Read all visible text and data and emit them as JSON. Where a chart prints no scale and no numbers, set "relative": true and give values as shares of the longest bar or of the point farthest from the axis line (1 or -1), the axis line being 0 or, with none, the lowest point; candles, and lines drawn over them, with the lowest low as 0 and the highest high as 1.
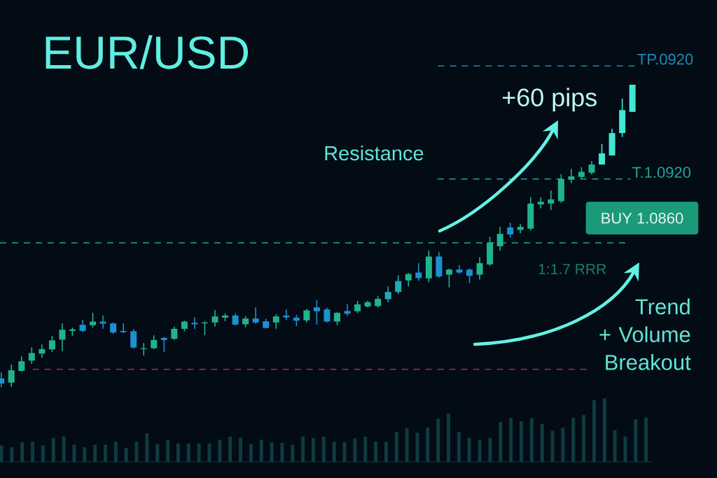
{
  "chart_data": [
    {
      "type": "candlestick",
      "title": "EUR/USD",
      "relative": true,
      "categories": [
        null,
        null,
        null,
        null,
        null,
        null,
        null,
        null,
        null,
        null,
        null,
        null,
        null,
        null,
        null,
        null,
        null,
        null,
        null,
        null,
        null,
        null,
        null,
        null,
        null,
        null,
        null,
        null,
        null,
        null,
        null,
        null,
        null,
        null,
        null,
        null,
        null,
        null,
        null,
        null,
        null,
        null,
        null,
        null,
        null,
        null,
        null,
        null,
        null,
        null,
        null,
        null,
        null,
        null,
        null,
        null,
        null,
        null,
        null,
        null,
        null,
        null,
        null
      ],
      "ohlc": [
        [
          0.029,
          0.049,
          0,
          0.012
        ],
        [
          0.015,
          0.075,
          0.001,
          0.056
        ],
        [
          0.054,
          0.102,
          0.052,
          0.086
        ],
        [
          0.088,
          0.132,
          0.077,
          0.113
        ],
        [
          0.111,
          0.141,
          0.097,
          0.126
        ],
        [
          0.125,
          0.17,
          0.117,
          0.155
        ],
        [
          0.157,
          0.211,
          0.119,
          0.19
        ],
        [
          0.186,
          0.197,
          0.17,
          0.191
        ],
        [
          0.206,
          0.223,
          0.182,
          0.186
        ],
        [
          0.205,
          0.246,
          0.197,
          0.217
        ],
        [
          0.217,
          0.237,
          0.193,
          0.21
        ],
        [
          0.211,
          0.214,
          0.176,
          0.181
        ],
        [
          0.186,
          0.211,
          0.179,
          0.182
        ],
        [
          0.185,
          0.192,
          0.128,
          0.131
        ],
        [
          0.126,
          0.146,
          0.105,
          0.129
        ],
        [
          0.129,
          0.171,
          0.126,
          0.156
        ],
        [
          0.163,
          0.166,
          0.116,
          0.156
        ],
        [
          0.16,
          0.2,
          0.156,
          0.193
        ],
        [
          0.193,
          0.22,
          0.185,
          0.217
        ],
        [
          0.213,
          0.231,
          0.193,
          0.208
        ],
        [
          0.211,
          0.218,
          0.172,
          0.214
        ],
        [
          0.214,
          0.255,
          0.2,
          0.234
        ],
        [
          0.23,
          0.244,
          0.218,
          0.237
        ],
        [
          0.237,
          0.244,
          0.205,
          0.207
        ],
        [
          0.208,
          0.235,
          0.198,
          0.227
        ],
        [
          0.227,
          0.264,
          0.21,
          0.214
        ],
        [
          0.218,
          0.226,
          0.194,
          0.196
        ],
        [
          0.214,
          0.241,
          0.193,
          0.234
        ],
        [
          0.237,
          0.257,
          0.223,
          0.231
        ],
        [
          0.23,
          0.239,
          0.202,
          0.22
        ],
        [
          0.221,
          0.259,
          0.214,
          0.254
        ],
        [
          0.264,
          0.288,
          0.207,
          0.251
        ],
        [
          0.257,
          0.263,
          0.214,
          0.217
        ],
        [
          0.217,
          0.248,
          0.205,
          0.246
        ],
        [
          0.252,
          0.275,
          0.236,
          0.243
        ],
        [
          0.251,
          0.285,
          0.245,
          0.274
        ],
        [
          0.267,
          0.285,
          0.264,
          0.281
        ],
        [
          0.268,
          0.301,
          0.264,
          0.292
        ],
        [
          0.291,
          0.333,
          0.281,
          0.315
        ],
        [
          0.315,
          0.37,
          0.308,
          0.351
        ],
        [
          0.353,
          0.378,
          0.333,
          0.374
        ],
        [
          0.379,
          0.41,
          0.352,
          0.361
        ],
        [
          0.36,
          0.452,
          0.347,
          0.432
        ],
        [
          0.432,
          0.447,
          0.362,
          0.366
        ],
        [
          0.372,
          0.392,
          0.33,
          0.389
        ],
        [
          0.389,
          0.404,
          0.375,
          0.379
        ],
        [
          0.389,
          0.392,
          0.344,
          0.368
        ],
        [
          0.372,
          0.43,
          0.356,
          0.41
        ],
        [
          0.406,
          0.497,
          0.401,
          0.478
        ],
        [
          0.466,
          0.53,
          0.452,
          0.507
        ],
        [
          0.528,
          0.544,
          0.495,
          0.505
        ],
        [
          0.52,
          0.54,
          0.509,
          0.53
        ],
        [
          0.524,
          0.628,
          0.518,
          0.607
        ],
        [
          0.604,
          0.628,
          0.591,
          0.613
        ],
        [
          0.607,
          0.65,
          0.586,
          0.621
        ],
        [
          0.615,
          0.704,
          0.609,
          0.688
        ],
        [
          0.686,
          0.722,
          0.675,
          0.697
        ],
        [
          0.695,
          0.727,
          0.69,
          0.712
        ],
        [
          0.709,
          0.748,
          0.703,
          0.736
        ],
        [
          0.736,
          0.804,
          0.736,
          0.773
        ],
        [
          0.766,
          0.854,
          0.766,
          0.84
        ],
        [
          0.84,
          0.954,
          0.827,
          0.916
        ],
        [
          0.91,
          1,
          0.91,
          1
        ]
      ],
      "colors": [
        "#1e8fd2",
        "#1fb38e",
        "#1fb38e",
        "#1fb38e",
        "#1fb38e",
        "#1fb38e",
        "#1fb38e",
        "#1fb38e",
        "#1e8fd2",
        "#1fb38e",
        "#1e8fd2",
        "#1e8fd2",
        "#1e8fd2",
        "#1e8fd2",
        "#1fb38e",
        "#1fb38e",
        "#1e8fd2",
        "#1fb38e",
        "#1fb38e",
        "#1e8fd2",
        "#1fb38e",
        "#1fb38e",
        "#1fb38e",
        "#1e8fd2",
        "#1fb38e",
        "#1e8fd2",
        "#1e8fd2",
        "#1fb38e",
        "#1e8fd2",
        "#1e8fd2",
        "#1fb38e",
        "#1e8fd2",
        "#1e8fd2",
        "#1fb38e",
        "#1e8fd2",
        "#1fb38e",
        "#1fb38e",
        "#1fb38e",
        "#26a9b2",
        "#26a9b2",
        "#1fb38e",
        "#1e8fd2",
        "#1fb38e",
        "#1e8fd2",
        "#1fb38e",
        "#1e8fd2",
        "#1e8fd2",
        "#1fb38e",
        "#1fb38e",
        "#1fb38e",
        "#1e8fd2",
        "#1fb38e",
        "#1fb38e",
        "#1fb38e",
        "#1fb38e",
        "#1fb38e",
        "#1fb38e",
        "#1fb38e",
        "#1fb38e",
        "#42e6d3",
        "#42e6d3",
        "#42e6d3",
        "#42e6d3"
      ],
      "ref_lines": [
        {
          "axis": "y",
          "value": 1.062,
          "label": "TP.0920",
          "color": "#1a8cb4",
          "line_style": "dashed"
        },
        {
          "axis": "y",
          "value": 0.688,
          "label": "T.1.0920",
          "color": "#1fa898",
          "line_style": "dashed"
        },
        {
          "axis": "y",
          "value": 0.477,
          "color": "#1fa88f",
          "line_style": "dashed"
        },
        {
          "axis": "y",
          "value": 0.059,
          "color": "#c0272d",
          "line_style": "dashed"
        }
      ],
      "annotations": [
        "Resistance",
        "+60 pips",
        "BUY 1.0860",
        "1:1.7 RRR",
        "Trend + Volume Breakout"
      ]
    },
    {
      "type": "bar",
      "relative": true,
      "color": "#0e3b40",
      "categories": [
        null,
        null,
        null,
        null,
        null,
        null,
        null,
        null,
        null,
        null,
        null,
        null,
        null,
        null,
        null,
        null,
        null,
        null,
        null,
        null,
        null,
        null,
        null,
        null,
        null,
        null,
        null,
        null,
        null,
        null,
        null,
        null,
        null,
        null,
        null,
        null,
        null,
        null,
        null,
        null,
        null,
        null,
        null,
        null,
        null,
        null,
        null,
        null,
        null,
        null,
        null,
        null,
        null,
        null,
        null,
        null,
        null,
        null,
        null,
        null,
        null,
        null,
        null
      ],
      "values": [
        0.26,
        0.23,
        0.31,
        0.32,
        0.26,
        0.38,
        0.4,
        0.27,
        0.23,
        0.27,
        0.27,
        0.32,
        0.22,
        0.32,
        0.45,
        0.28,
        0.35,
        0.29,
        0.29,
        0.29,
        0.29,
        0.35,
        0.4,
        0.38,
        0.28,
        0.35,
        0.31,
        0.3,
        0.27,
        0.4,
        0.38,
        0.4,
        0.32,
        0.31,
        0.37,
        0.4,
        0.32,
        0.32,
        0.47,
        0.53,
        0.46,
        0.54,
        0.68,
        0.76,
        0.47,
        0.38,
        0.35,
        0.38,
        0.63,
        0.69,
        0.64,
        0.69,
        0.6,
        0.49,
        0.54,
        0.7,
        0.74,
        0.97,
        1,
        0.5,
        0.4,
        0.67,
        0.7
      ]
    }
  ]
}
